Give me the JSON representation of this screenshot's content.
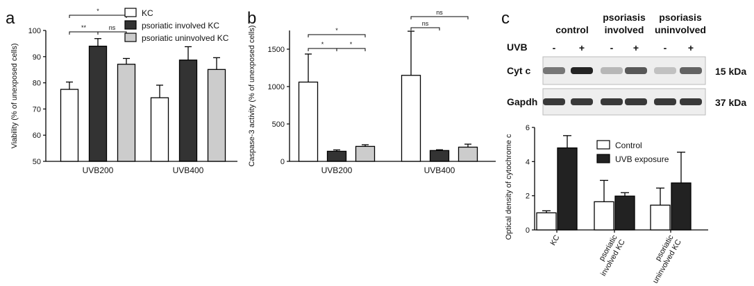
{
  "chart_data": [
    {
      "panel": "a",
      "type": "bar",
      "ylabel": "Viability (% of unexposed cells)",
      "ylim": [
        50,
        100
      ],
      "yticks": [
        50,
        60,
        70,
        80,
        90,
        100
      ],
      "categories": [
        "UVB200",
        "UVB400"
      ],
      "series": [
        {
          "name": "KC",
          "values": [
            77.5,
            74.3
          ],
          "errors": [
            2.8,
            4.8
          ],
          "color": "#ffffff"
        },
        {
          "name": "psoriatic involved KC",
          "values": [
            94.0,
            88.7
          ],
          "errors": [
            2.9,
            5.1
          ],
          "color": "#333333"
        },
        {
          "name": "psoriatic uninvolved KC",
          "values": [
            87.1,
            85.1
          ],
          "errors": [
            2.2,
            4.5
          ],
          "color": "#cccccc"
        }
      ],
      "legend": "top-right",
      "significance": [
        {
          "label": "*",
          "from": 0,
          "to": 2,
          "group": 0
        },
        {
          "label": "**",
          "from": 0,
          "to": 1,
          "group": 0
        },
        {
          "label": "ns",
          "from": 1,
          "to": 2,
          "group": 0
        }
      ]
    },
    {
      "panel": "b",
      "type": "bar",
      "ylabel": "Caspase-3 activity (% of unexposed cells)",
      "ylim": [
        0,
        1750
      ],
      "yticks": [
        0,
        500,
        1000,
        1500
      ],
      "categories": [
        "UVB200",
        "UVB400"
      ],
      "series": [
        {
          "name": "KC",
          "values": [
            1060,
            1150
          ],
          "errors": [
            375,
            590
          ],
          "color": "#ffffff"
        },
        {
          "name": "psoriatic involved KC",
          "values": [
            135,
            145
          ],
          "errors": [
            18,
            10
          ],
          "color": "#333333"
        },
        {
          "name": "psoriatic uninvolved KC",
          "values": [
            200,
            190
          ],
          "errors": [
            22,
            40
          ],
          "color": "#cccccc"
        }
      ],
      "significance": [
        {
          "label": "*",
          "from": 0,
          "to": 2,
          "group": 0
        },
        {
          "label": "*",
          "from": 0,
          "to": 1,
          "group": 0
        },
        {
          "label": "*",
          "from": 1,
          "to": 2,
          "group": 0
        },
        {
          "label": "ns",
          "from": 0,
          "to": 1,
          "group": 1
        },
        {
          "label": "ns",
          "from": 0,
          "to": 2,
          "group": 1
        }
      ]
    },
    {
      "panel": "c",
      "type": "bar",
      "ylabel": "Optical density of cytochrome c",
      "ylim": [
        0,
        6
      ],
      "yticks": [
        0,
        2,
        4,
        6
      ],
      "categories": [
        "KC",
        "psoriatic involved KC",
        "psoriatic uninvolved KC"
      ],
      "series": [
        {
          "name": "Control",
          "values": [
            1.0,
            1.65,
            1.45
          ],
          "errors": [
            0.12,
            1.25,
            1.0
          ],
          "color": "#ffffff"
        },
        {
          "name": "UVB exposure",
          "values": [
            4.8,
            1.98,
            2.75
          ],
          "errors": [
            0.72,
            0.2,
            1.8
          ],
          "color": "#222222"
        }
      ],
      "legend": "top-right"
    }
  ],
  "blot": {
    "groups": [
      "control",
      "psoriasis\ninvolved",
      "psoriasis\nuninvolved"
    ],
    "uvb_label": "UVB",
    "uvb_signs": [
      "-",
      "+",
      "-",
      "+",
      "-",
      "+"
    ],
    "rows": [
      {
        "name": "Cyt c",
        "size": "15 kDa",
        "intensities": [
          0.55,
          0.95,
          0.25,
          0.7,
          0.2,
          0.65
        ]
      },
      {
        "name": "Gapdh",
        "size": "37 kDa",
        "intensities": [
          0.85,
          0.85,
          0.85,
          0.85,
          0.85,
          0.85
        ]
      }
    ]
  }
}
